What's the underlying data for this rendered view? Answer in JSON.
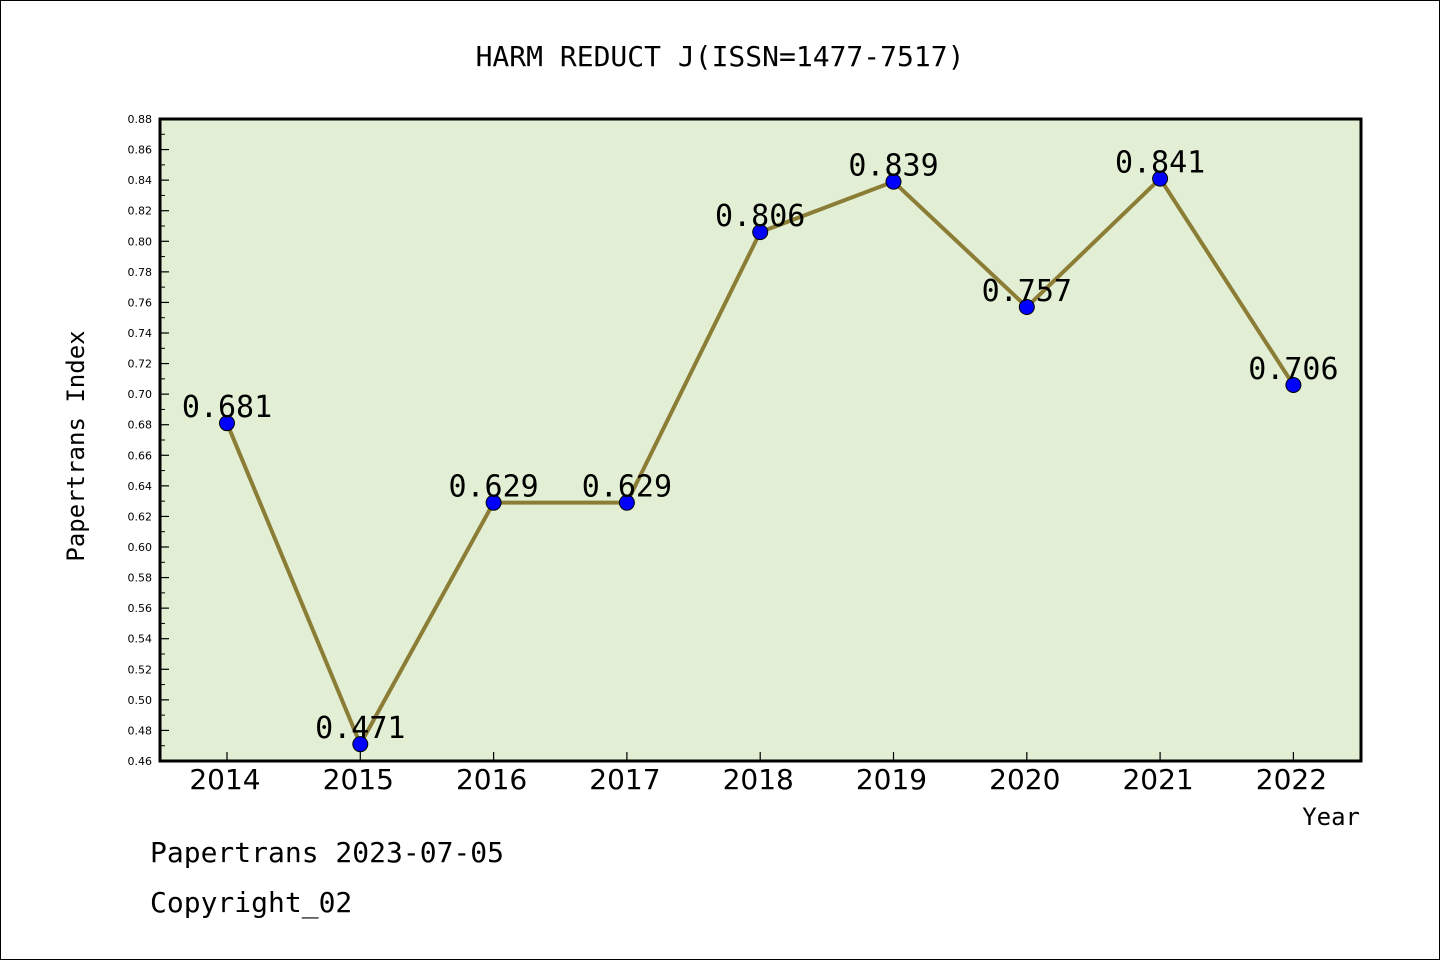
{
  "chart_data": {
    "type": "line",
    "title": "HARM REDUCT J(ISSN=1477-7517)",
    "xlabel": "Year",
    "ylabel": "Papertrans Index",
    "categories": [
      "2014",
      "2015",
      "2016",
      "2017",
      "2018",
      "2019",
      "2020",
      "2021",
      "2022"
    ],
    "values": [
      0.681,
      0.471,
      0.629,
      0.629,
      0.806,
      0.839,
      0.757,
      0.841,
      0.706
    ],
    "data_labels": [
      "0.681",
      "0.471",
      "0.629",
      "0.629",
      "0.806",
      "0.839",
      "0.757",
      "0.841",
      "0.706"
    ],
    "ylim": [
      0.46,
      0.88
    ],
    "yticks": [
      "0.46",
      "0.48",
      "0.50",
      "0.52",
      "0.54",
      "0.56",
      "0.58",
      "0.60",
      "0.62",
      "0.64",
      "0.66",
      "0.68",
      "0.70",
      "0.72",
      "0.74",
      "0.76",
      "0.78",
      "0.80",
      "0.82",
      "0.84",
      "0.86",
      "0.88"
    ],
    "grid": false,
    "colors": {
      "plot_background": "#e2efd4",
      "line": "#8b7d35",
      "marker": "#0000ff"
    }
  },
  "footer": {
    "date_line": "Papertrans 2023-07-05",
    "copyright": "Copyright_02"
  }
}
